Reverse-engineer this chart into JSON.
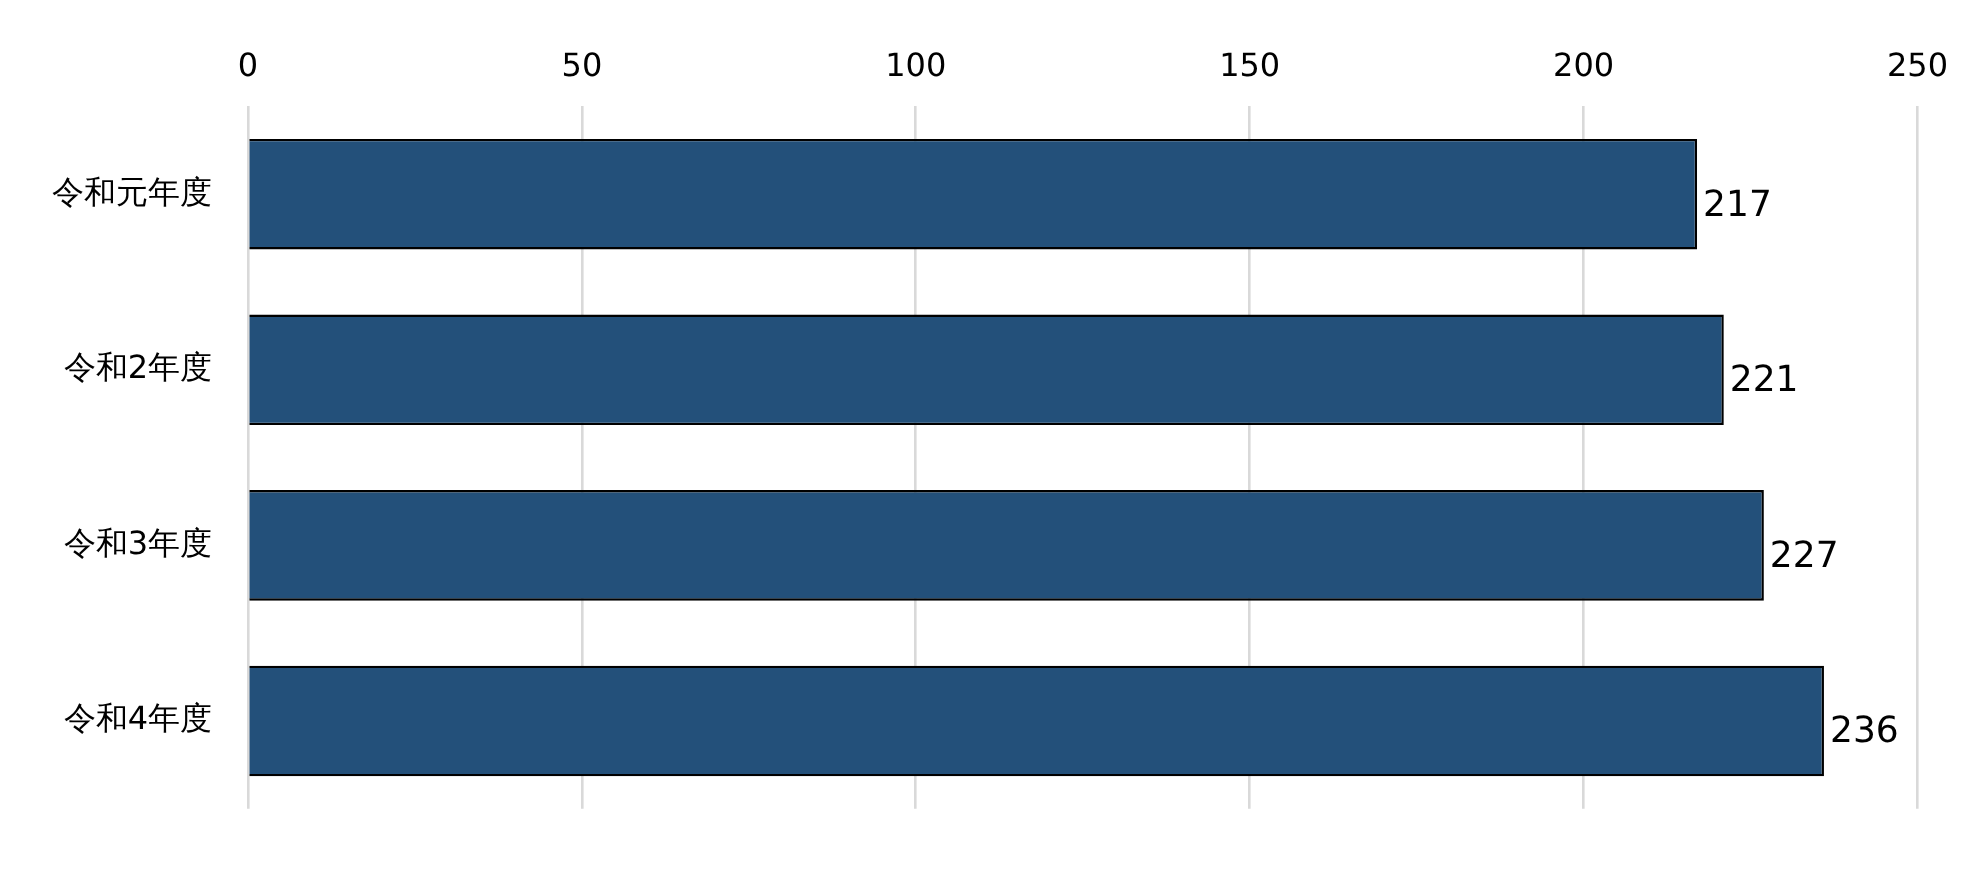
{
  "chart_data": {
    "type": "bar",
    "orientation": "horizontal",
    "categories": [
      "令和元年度",
      "令和2年度",
      "令和3年度",
      "令和4年度"
    ],
    "values": [
      217,
      221,
      227,
      236
    ],
    "color": "#23507a",
    "xlim": [
      0,
      250
    ],
    "xticks": [
      0,
      50,
      100,
      150,
      200,
      250
    ],
    "grid": "x",
    "data_labels": true
  }
}
